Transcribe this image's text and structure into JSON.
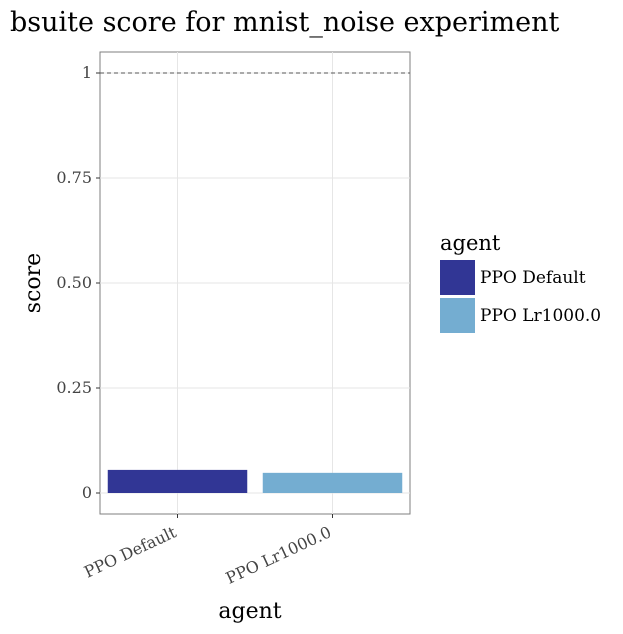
{
  "chart_data": {
    "type": "bar",
    "title": "bsuite score for mnist_noise experiment",
    "xlabel": "agent",
    "ylabel": "score",
    "categories": [
      "PPO Default",
      "PPO Lr1000.0"
    ],
    "values": [
      0.055,
      0.048
    ],
    "colors": [
      "#313695",
      "#74add1"
    ],
    "ylim": [
      -0.05,
      1.05
    ],
    "yticks": [
      0,
      0.25,
      0.5,
      0.75,
      1
    ],
    "ytick_labels": [
      "0",
      "0.25",
      "0.50",
      "0.75",
      "1"
    ],
    "reference_line": 1,
    "grid": true,
    "legend": {
      "title": "agent",
      "placement": "right",
      "entries": [
        "PPO Default",
        "PPO Lr1000.0"
      ]
    }
  }
}
